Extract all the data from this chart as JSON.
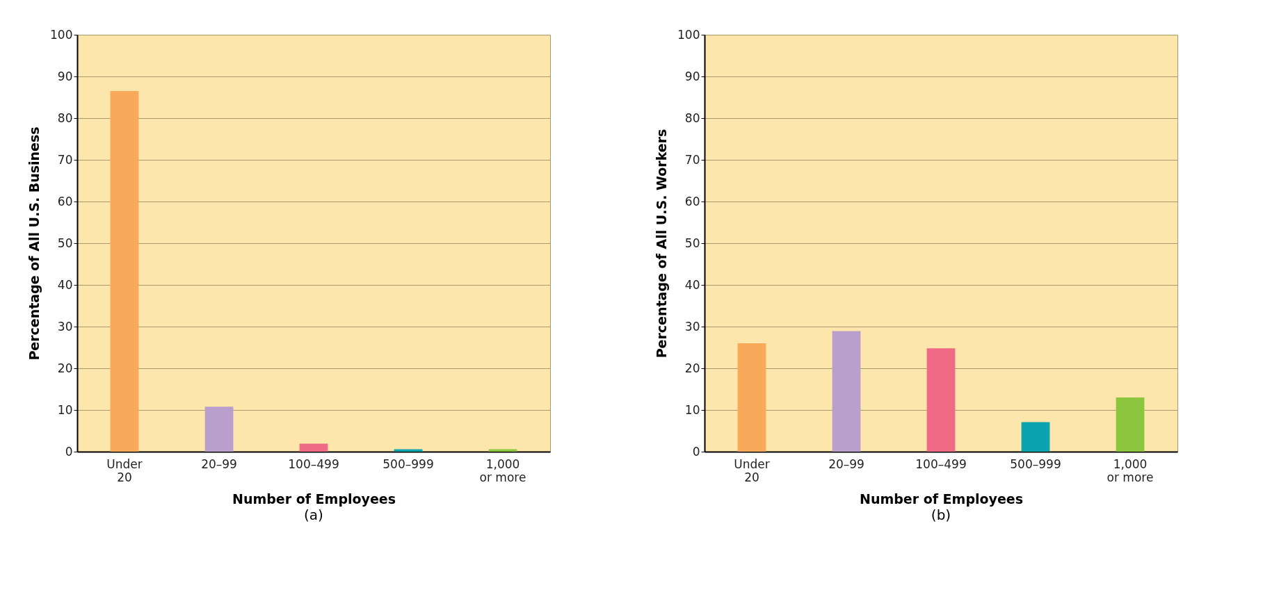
{
  "chart_data": [
    {
      "type": "bar",
      "title": "(a)",
      "xlabel": "Number of Employees",
      "ylabel": "Percentage of All U.S. Business",
      "categories": [
        "Under 20",
        "20–99",
        "100–499",
        "500–999",
        "1,000 or more"
      ],
      "values": [
        86.5,
        10.8,
        1.9,
        0.6,
        0.6
      ],
      "colors": [
        "#f9a95a",
        "#b9a0cc",
        "#ef6b85",
        "#0aa3ae",
        "#8cc63f"
      ],
      "ylim": [
        0,
        100
      ],
      "yticks": [
        0,
        10,
        20,
        30,
        40,
        50,
        60,
        70,
        80,
        90,
        100
      ],
      "grid": "y"
    },
    {
      "type": "bar",
      "title": "(b)",
      "xlabel": "Number of Employees",
      "ylabel": "Percentage of All U.S. Workers",
      "categories": [
        "Under 20",
        "20–99",
        "100–499",
        "500–999",
        "1,000 or more"
      ],
      "values": [
        26,
        28.9,
        24.8,
        7.1,
        13
      ],
      "colors": [
        "#f9a95a",
        "#b9a0cc",
        "#ef6b85",
        "#0aa3ae",
        "#8cc63f"
      ],
      "ylim": [
        0,
        100
      ],
      "yticks": [
        0,
        10,
        20,
        30,
        40,
        50,
        60,
        70,
        80,
        90,
        100
      ],
      "grid": "y"
    }
  ]
}
